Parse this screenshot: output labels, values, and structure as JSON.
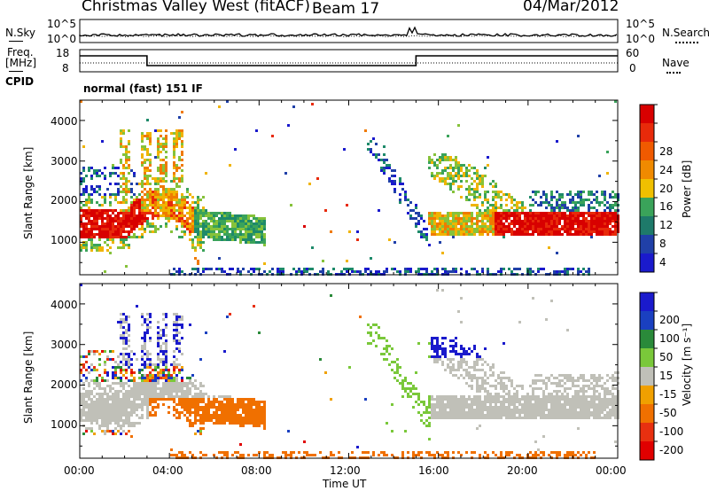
{
  "header": {
    "station": "Christmas Valley West (fitACF)",
    "beam": "Beam 17",
    "date": "04/Mar/2012"
  },
  "labels": {
    "nsky": "N.Sky",
    "nsearch": "N.Search",
    "freq_line1": "Freq.",
    "freq_line2": "[MHz]",
    "nave": "Nave",
    "cpid": "CPID",
    "cpid_value": "normal (fast) 151 IF"
  },
  "noise_axis": {
    "top": "10^5",
    "bottom": "10^0"
  },
  "freq_axis": {
    "left_top": "18",
    "left_bottom": "8",
    "right_top": "60",
    "right_bottom": "0"
  },
  "colors": {
    "power": [
      "#1a1acc",
      "#2040a8",
      "#1e8a6a",
      "#3aa35a",
      "#86c23a",
      "#f0b400",
      "#f07a00",
      "#e82a0a",
      "#d80000"
    ],
    "velocity": [
      "#1a1acc",
      "#1a40c0",
      "#2a8a3a",
      "#7ac83a",
      "#c0c0b8",
      "#f0a000",
      "#f07000",
      "#e83010",
      "#e00000"
    ]
  },
  "chart_data": [
    {
      "type": "heatmap",
      "title": "Power",
      "xlabel": "Time UT",
      "ylabel": "Slant Range [km]",
      "x_ticks": [
        "00:00",
        "04:00",
        "08:00",
        "12:00",
        "16:00",
        "20:00",
        "00:00"
      ],
      "y_ticks": [
        "1000",
        "2000",
        "3000",
        "4000"
      ],
      "xlim_hours": [
        0,
        24
      ],
      "ylim_km": [
        200,
        4500
      ],
      "colorbar": {
        "label": "Power [dB]",
        "ticks": [
          "4",
          "8",
          "12",
          "16",
          "20",
          "24",
          "28"
        ]
      }
    },
    {
      "type": "heatmap",
      "title": "Velocity",
      "xlabel": "Time UT",
      "ylabel": "Slant Range [km]",
      "x_ticks": [
        "00:00",
        "04:00",
        "08:00",
        "12:00",
        "16:00",
        "20:00",
        "00:00"
      ],
      "y_ticks": [
        "1000",
        "2000",
        "3000",
        "4000"
      ],
      "xlim_hours": [
        0,
        24
      ],
      "ylim_km": [
        200,
        4500
      ],
      "colorbar": {
        "label": "Velocity [m s⁻¹]",
        "ticks": [
          "200",
          "100",
          "50",
          "15",
          "-15",
          "-50",
          "-100",
          "-200"
        ]
      }
    }
  ]
}
